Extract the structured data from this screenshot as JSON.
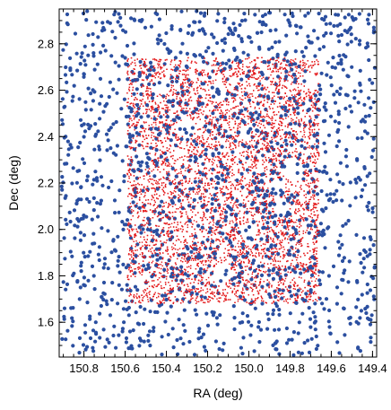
{
  "chart_data": {
    "type": "scatter",
    "title": "",
    "xlabel": "RA (deg)",
    "ylabel": "Dec (deg)",
    "xlim": [
      150.92,
      149.38
    ],
    "ylim": [
      1.45,
      2.95
    ],
    "x_reversed": true,
    "x_ticks": [
      150.8,
      150.6,
      150.4,
      150.2,
      150.0,
      149.8,
      149.6,
      149.4
    ],
    "x_tick_labels": [
      "150.8",
      "150.6",
      "150.4",
      "150.2",
      "150.0",
      "149.8",
      "149.6",
      "149.4"
    ],
    "y_ticks": [
      1.6,
      1.8,
      2.0,
      2.2,
      2.4,
      2.6,
      2.8
    ],
    "y_tick_labels": [
      "1.6",
      "1.8",
      "2.0",
      "2.2",
      "2.4",
      "2.6",
      "2.8"
    ],
    "grid": false,
    "series": [
      {
        "color": "#2B4FA0",
        "marker": "filled-circle",
        "distribution": "uniform over full plotted field",
        "approx_count": 1500,
        "region": {
          "ra": [
            150.92,
            149.38
          ],
          "dec": [
            1.45,
            2.95
          ]
        }
      },
      {
        "color": "#E41A1C",
        "marker": "small-dot",
        "distribution": "dense uniform within rectangular footprint with masked holes",
        "approx_count": 9000,
        "region": {
          "ra": [
            150.59,
            149.66
          ],
          "dec": [
            1.68,
            2.74
          ]
        },
        "masked_holes": [
          {
            "ra": 150.41,
            "dec": 2.62,
            "r": 0.035
          },
          {
            "ra": 150.3,
            "dec": 2.44,
            "r": 0.04
          },
          {
            "ra": 150.15,
            "dec": 2.59,
            "r": 0.04
          },
          {
            "ra": 150.02,
            "dec": 2.42,
            "r": 0.03
          },
          {
            "ra": 150.52,
            "dec": 2.3,
            "r": 0.045
          },
          {
            "ra": 150.11,
            "dec": 2.73,
            "r": 0.03
          },
          {
            "ra": 149.79,
            "dec": 2.26,
            "r": 0.05
          },
          {
            "ra": 149.86,
            "dec": 2.18,
            "r": 0.04
          },
          {
            "ra": 149.84,
            "dec": 2.1,
            "r": 0.035
          },
          {
            "ra": 150.0,
            "dec": 1.99,
            "r": 0.04
          },
          {
            "ra": 150.13,
            "dec": 1.81,
            "r": 0.045
          },
          {
            "ra": 150.54,
            "dec": 1.76,
            "r": 0.035
          },
          {
            "ra": 149.7,
            "dec": 2.64,
            "r": 0.035
          }
        ]
      }
    ]
  }
}
